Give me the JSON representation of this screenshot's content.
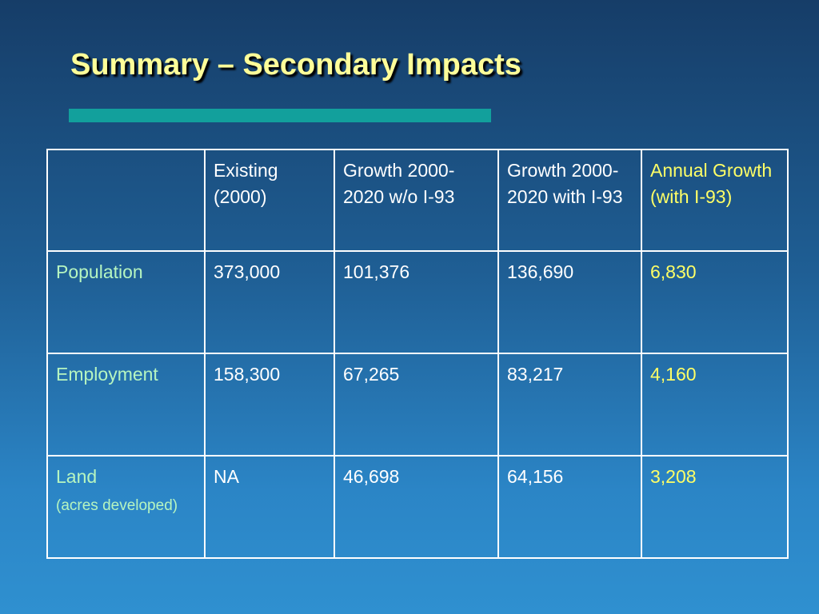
{
  "slide": {
    "title": "Summary – Secondary Impacts",
    "colors": {
      "title": "#ffff99",
      "accent_bar": "#12a09c",
      "row_label": "#b6f5c0",
      "highlight_column": "#ffff66",
      "table_text": "#ffffff"
    }
  },
  "table": {
    "headers": [
      "",
      "Existing (2000)",
      "Growth 2000-2020 w/o I-93",
      "Growth 2000-2020 with I-93",
      "Annual Growth (with I-93)"
    ],
    "rows": [
      {
        "label": "Population",
        "sublabel": "",
        "existing": "373,000",
        "growth_without": "101,376",
        "growth_with": "136,690",
        "annual": "6,830"
      },
      {
        "label": "Employment",
        "sublabel": "",
        "existing": "158,300",
        "growth_without": "67,265",
        "growth_with": "83,217",
        "annual": "4,160"
      },
      {
        "label": "Land",
        "sublabel": "(acres developed)",
        "existing": "NA",
        "growth_without": "46,698",
        "growth_with": "64,156",
        "annual": "3,208"
      }
    ]
  }
}
